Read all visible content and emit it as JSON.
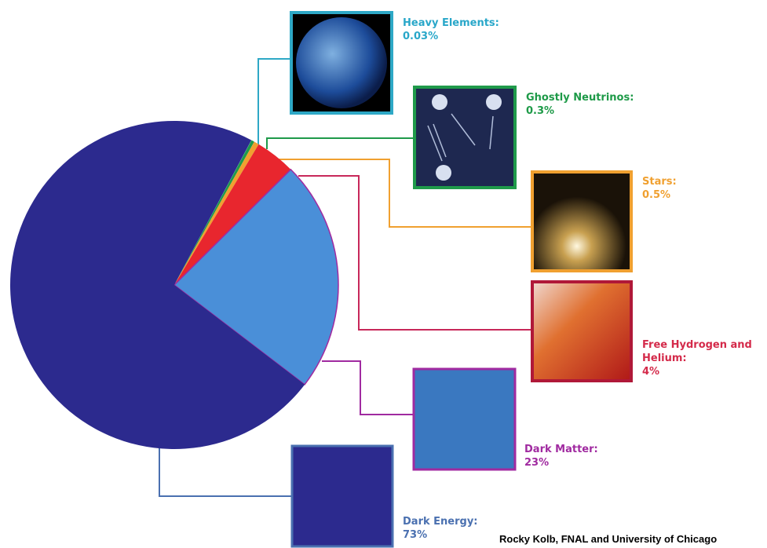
{
  "chart_data": {
    "type": "pie",
    "categories": [
      "Heavy Elements:",
      "Ghostly Neutrinos:",
      "Stars:",
      "Free Hydrogen and Helium:",
      "Dark Matter:",
      "Dark Energy:"
    ],
    "values": [
      0.03,
      0.3,
      0.5,
      4,
      23,
      73
    ],
    "value_labels": [
      "0.03%",
      "0.3%",
      "0.5%",
      "4%",
      "23%",
      "73%"
    ],
    "colors": [
      "#2ea8c6",
      "#1f9a4a",
      "#f0a030",
      "#e8262e",
      "#4a8fd8",
      "#2c2a8e"
    ],
    "label_colors": [
      "#29a7c9",
      "#1e9a48",
      "#f0a030",
      "#d42a4a",
      "#a02aa0",
      "#4a70b0"
    ],
    "source": "Rocky Kolb, FNAL and University of Chicago"
  }
}
